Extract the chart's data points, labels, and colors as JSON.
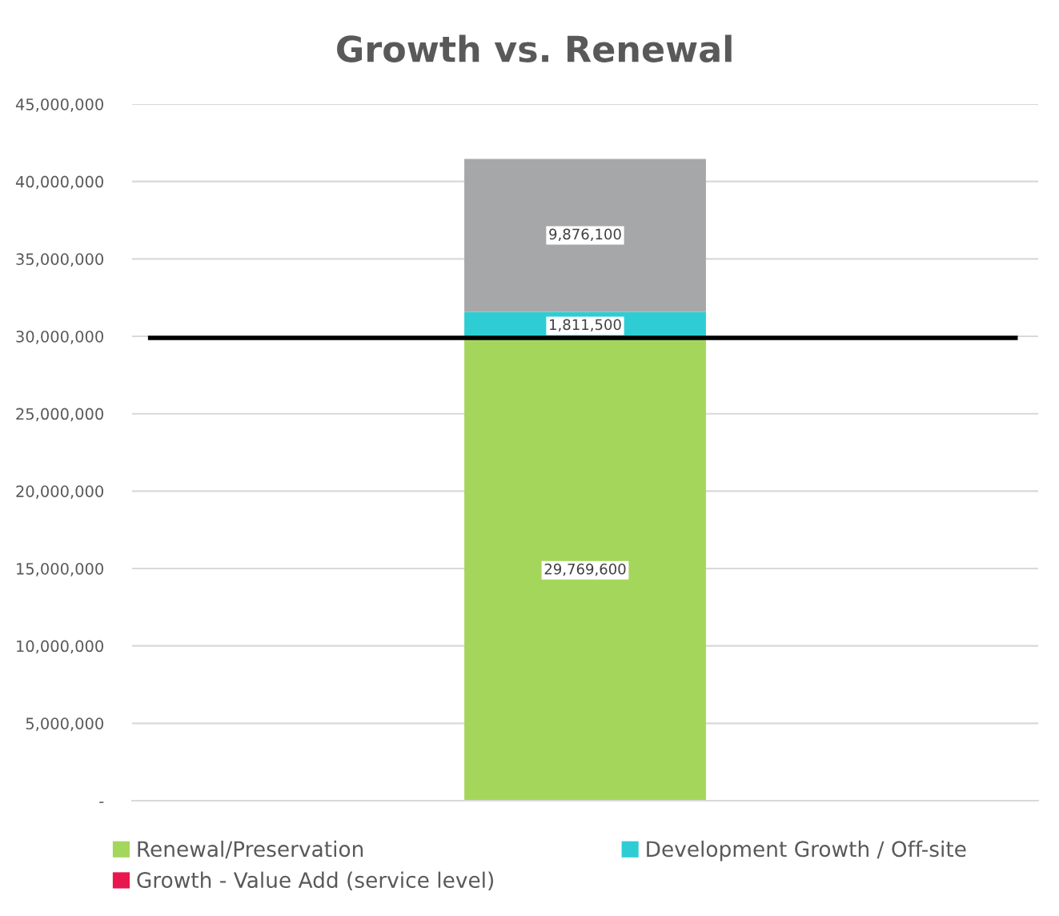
{
  "chart_data": {
    "type": "bar",
    "title": "Growth vs. Renewal",
    "stacked": true,
    "categories": [
      null
    ],
    "series": [
      {
        "name": "Renewal/Preservation",
        "color": "#a5d65c",
        "values": [
          29769600
        ],
        "value_labels": [
          "29,769,600"
        ]
      },
      {
        "name": "Development Growth / Off-site",
        "color": "#2ecdd4",
        "values": [
          1811500
        ],
        "value_labels": [
          "1,811,500"
        ]
      },
      {
        "name": "Growth - Value Add (service level)",
        "color": "#e8184f",
        "values": [
          null
        ]
      },
      {
        "color": "#a6a7a9",
        "values": [
          9876100
        ],
        "value_labels": [
          "9,876,100"
        ]
      }
    ],
    "ylim": [
      0,
      45000000
    ],
    "yticks": [
      {
        "value": 0,
        "label": "-"
      },
      {
        "value": 5000000,
        "label": "5,000,000"
      },
      {
        "value": 10000000,
        "label": "10,000,000"
      },
      {
        "value": 15000000,
        "label": "15,000,000"
      },
      {
        "value": 20000000,
        "label": "20,000,000"
      },
      {
        "value": 25000000,
        "label": "25,000,000"
      },
      {
        "value": 30000000,
        "label": "30,000,000"
      },
      {
        "value": 35000000,
        "label": "35,000,000"
      },
      {
        "value": 40000000,
        "label": "40,000,000"
      },
      {
        "value": 45000000,
        "label": "45,000,000"
      }
    ],
    "ref_lines": [
      {
        "axis": "y",
        "value": 29900000,
        "color": "#000000"
      }
    ],
    "grid": "y",
    "legend": "bottom"
  }
}
